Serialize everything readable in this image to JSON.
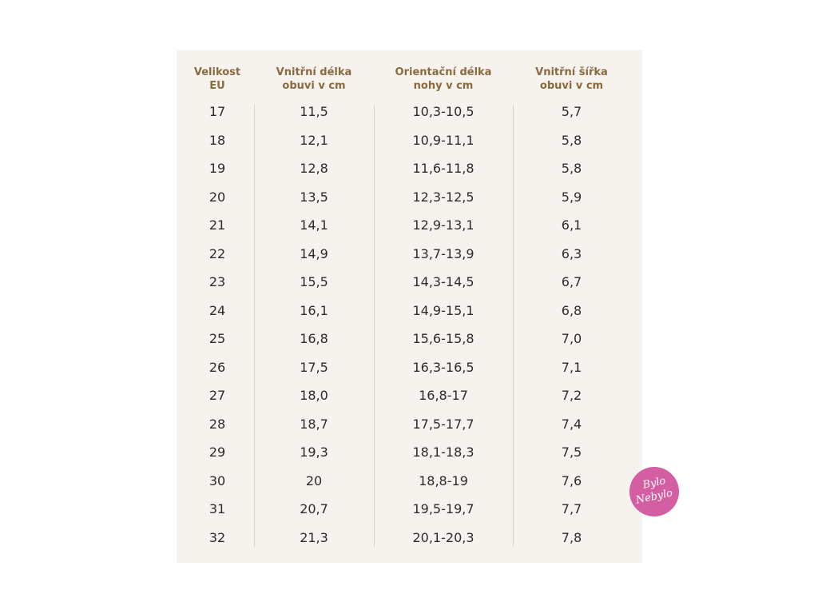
{
  "table": {
    "headers": [
      "Velikost\nEU",
      "Vnitřní délka\nobuvi v cm",
      "Orientační délka\nnohy v cm",
      "Vnitřní šířka\nobuvi v cm"
    ],
    "rows": [
      [
        "17",
        "11,5",
        "10,3-10,5",
        "5,7"
      ],
      [
        "18",
        "12,1",
        "10,9-11,1",
        "5,8"
      ],
      [
        "19",
        "12,8",
        "11,6-11,8",
        "5,8"
      ],
      [
        "20",
        "13,5",
        "12,3-12,5",
        "5,9"
      ],
      [
        "21",
        "14,1",
        "12,9-13,1",
        "6,1"
      ],
      [
        "22",
        "14,9",
        "13,7-13,9",
        "6,3"
      ],
      [
        "23",
        "15,5",
        "14,3-14,5",
        "6,7"
      ],
      [
        "24",
        "16,1",
        "14,9-15,1",
        "6,8"
      ],
      [
        "25",
        "16,8",
        "15,6-15,8",
        "7,0"
      ],
      [
        "26",
        "17,5",
        "16,3-16,5",
        "7,1"
      ],
      [
        "27",
        "18,0",
        "16,8-17",
        "7,2"
      ],
      [
        "28",
        "18,7",
        "17,5-17,7",
        "7,4"
      ],
      [
        "29",
        "19,3",
        "18,1-18,3",
        "7,5"
      ],
      [
        "30",
        "20",
        "18,8-19",
        "7,6"
      ],
      [
        "31",
        "20,7",
        "19,5-19,7",
        "7,7"
      ],
      [
        "32",
        "21,3",
        "20,1-20,3",
        "7,8"
      ]
    ]
  },
  "logo": {
    "line1": "Bylo",
    "line2": "Nebylo"
  },
  "colors": {
    "header_text": "#8a6a3e",
    "card_bg": "#f6f3ef",
    "logo_bg": "#d35ea1"
  }
}
